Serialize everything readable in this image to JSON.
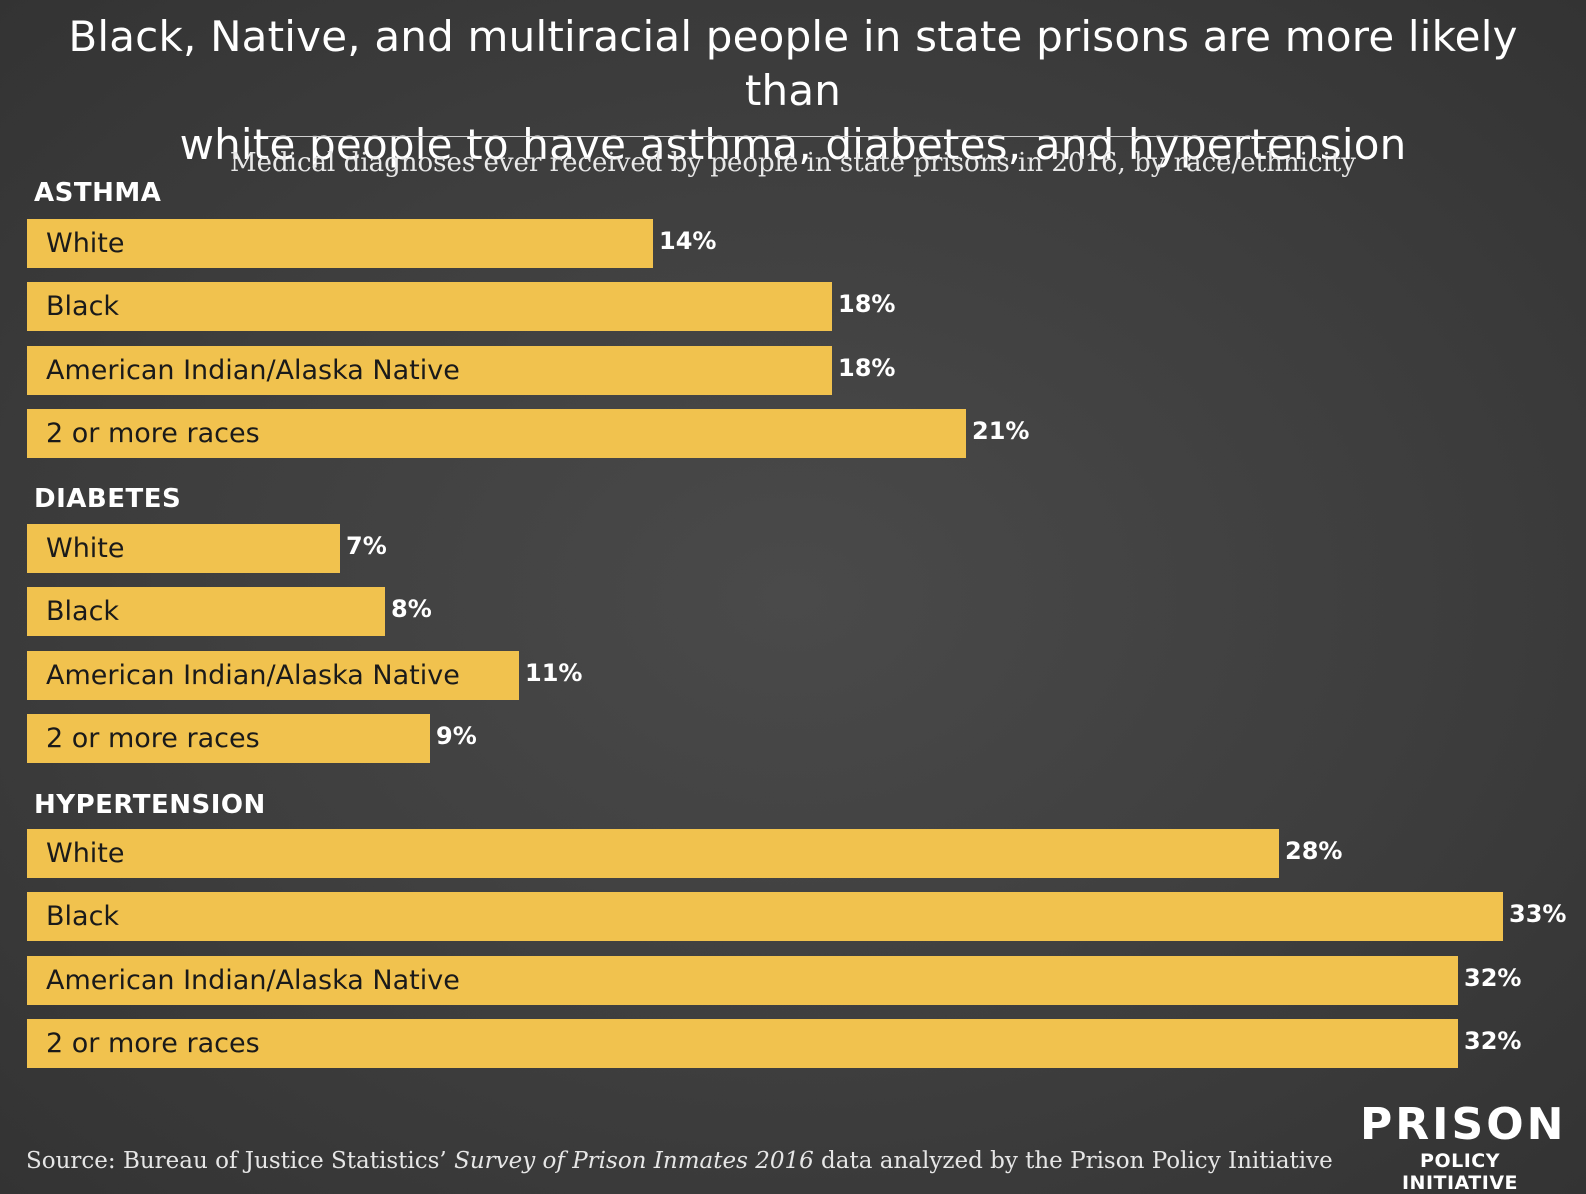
{
  "title_line1": "Black, Native, and multiracial people in state prisons are more likely than",
  "title_line2": "white people to have asthma, diabetes, and hypertension",
  "subtitle": "Medical diagnoses ever received by people in state prisons in 2016, by race/ethnicity",
  "source": {
    "prefix": "Source: Bureau of Justice Statistics’ ",
    "italic": "Survey of Prison Inmates 2016",
    "suffix": " data analyzed by the Prison Policy Initiative"
  },
  "logo": {
    "top": "PRISON",
    "bottom": "POLICY INITIATIVE"
  },
  "colors": {
    "bar": "#f1c24e",
    "background": "#3e3e3e",
    "text": "#ffffff"
  },
  "chart_data": {
    "type": "bar",
    "orientation": "horizontal",
    "unit": "%",
    "groups": [
      {
        "name": "ASTHMA",
        "bars": [
          {
            "label": "White",
            "value": 14,
            "value_label": "14%"
          },
          {
            "label": "Black",
            "value": 18,
            "value_label": "18%"
          },
          {
            "label": "American Indian/Alaska Native",
            "value": 18,
            "value_label": "18%"
          },
          {
            "label": "2 or more races",
            "value": 21,
            "value_label": "21%"
          }
        ]
      },
      {
        "name": "DIABETES",
        "bars": [
          {
            "label": "White",
            "value": 7,
            "value_label": "7%"
          },
          {
            "label": "Black",
            "value": 8,
            "value_label": "8%"
          },
          {
            "label": "American Indian/Alaska Native",
            "value": 11,
            "value_label": "11%"
          },
          {
            "label": "2 or more races",
            "value": 9,
            "value_label": "9%"
          }
        ]
      },
      {
        "name": "HYPERTENSION",
        "bars": [
          {
            "label": "White",
            "value": 28,
            "value_label": "28%"
          },
          {
            "label": "Black",
            "value": 33,
            "value_label": "33%"
          },
          {
            "label": "American Indian/Alaska Native",
            "value": 32,
            "value_label": "32%"
          },
          {
            "label": "2 or more races",
            "value": 32,
            "value_label": "32%"
          }
        ]
      }
    ]
  }
}
